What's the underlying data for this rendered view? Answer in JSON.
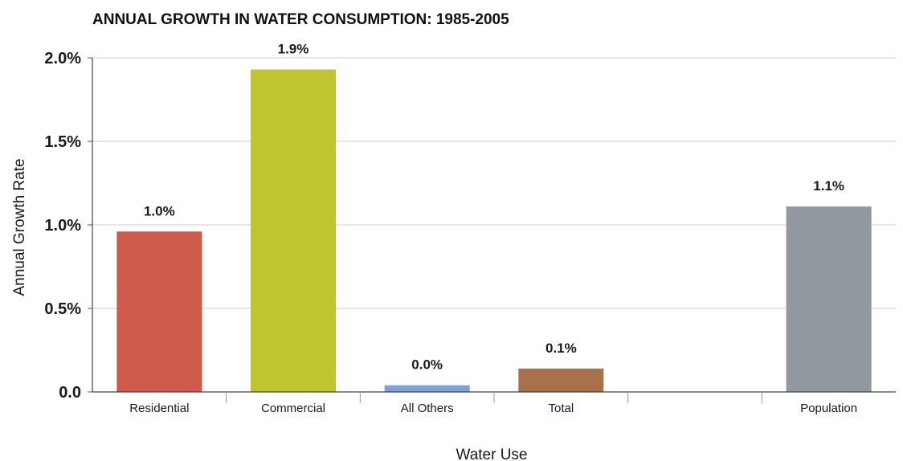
{
  "chart_data": {
    "type": "bar",
    "title": "ANNUAL GROWTH IN WATER CONSUMPTION: 1985-2005",
    "xlabel": "Water Use",
    "ylabel": "Annual Growth Rate",
    "ylim": [
      0,
      2.0
    ],
    "yticks": [
      {
        "value": 0.0,
        "label": "0.0"
      },
      {
        "value": 0.5,
        "label": "0.5%"
      },
      {
        "value": 1.0,
        "label": "1.0%"
      },
      {
        "value": 1.5,
        "label": "1.5%"
      },
      {
        "value": 2.0,
        "label": "2.0%"
      }
    ],
    "grid": true,
    "categories": [
      "Residential",
      "Commercial",
      "All Others",
      "Total",
      "",
      "Population"
    ],
    "values": [
      0.96,
      1.93,
      0.04,
      0.14,
      null,
      1.11
    ],
    "data_labels": [
      "1.0%",
      "1.9%",
      "0.0%",
      "0.1%",
      "",
      "1.1%"
    ],
    "colors": [
      "#cd5a4b",
      "#bfc52f",
      "#7fa3d8",
      "#a9714a",
      null,
      "#9298a0"
    ]
  }
}
